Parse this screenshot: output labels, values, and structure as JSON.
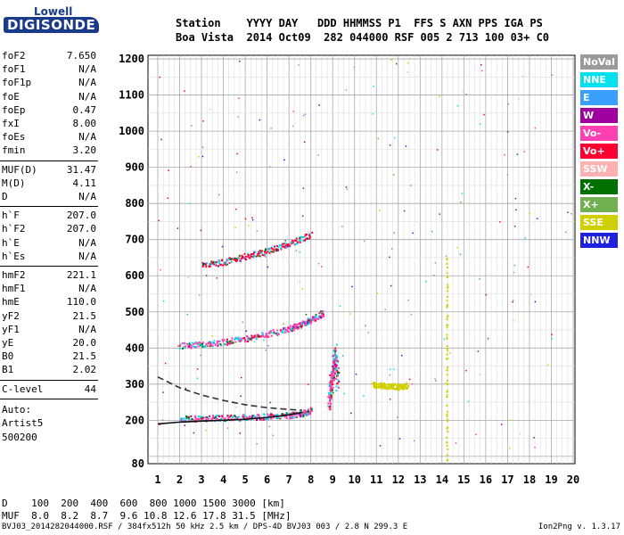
{
  "logo": {
    "top": "Lowell",
    "main": "DIGISONDE"
  },
  "header": {
    "row1": "Station    YYYY DAY   DDD HHMMSS P1  FFS S AXN PPS IGA PS",
    "row2": "Boa Vista  2014 Oct09  282 044000 RSF 005 2 713 100 03+ C0"
  },
  "params_group1": [
    {
      "name": "foF2",
      "value": "7.650"
    },
    {
      "name": "foF1",
      "value": "N/A"
    },
    {
      "name": "foF1p",
      "value": "N/A"
    },
    {
      "name": "foE",
      "value": "N/A"
    },
    {
      "name": "foEp",
      "value": "0.47"
    },
    {
      "name": "fxI",
      "value": "8.00"
    },
    {
      "name": "foEs",
      "value": "N/A"
    },
    {
      "name": "fmin",
      "value": "3.20"
    }
  ],
  "params_group2": [
    {
      "name": "MUF(D)",
      "value": "31.47"
    },
    {
      "name": "M(D)",
      "value": "4.11"
    },
    {
      "name": "D",
      "value": "N/A"
    }
  ],
  "params_group3": [
    {
      "name": "h`F",
      "value": "207.0"
    },
    {
      "name": "h`F2",
      "value": "207.0"
    },
    {
      "name": "h`E",
      "value": "N/A"
    },
    {
      "name": "h`Es",
      "value": "N/A"
    }
  ],
  "params_group4": [
    {
      "name": "hmF2",
      "value": "221.1"
    },
    {
      "name": "hmF1",
      "value": "N/A"
    },
    {
      "name": "hmE",
      "value": "110.0"
    },
    {
      "name": "yF2",
      "value": "21.5"
    },
    {
      "name": "yF1",
      "value": "N/A"
    },
    {
      "name": "yE",
      "value": "20.0"
    },
    {
      "name": "B0",
      "value": "21.5"
    },
    {
      "name": "B1",
      "value": "2.02"
    }
  ],
  "clevel": {
    "name": "C-level",
    "value": "44"
  },
  "autoscale": {
    "line1": "Auto:",
    "line2": "Artist5",
    "line3": "500200"
  },
  "legend": [
    {
      "label": "NoVal",
      "color": "#9a9a9a"
    },
    {
      "label": "NNE",
      "color": "#00e0f0"
    },
    {
      "label": "E",
      "color": "#3aa0ff"
    },
    {
      "label": "W",
      "color": "#a000a0"
    },
    {
      "label": "Vo-",
      "color": "#ff40b0"
    },
    {
      "label": "Vo+",
      "color": "#ff0030"
    },
    {
      "label": "SSW",
      "color": "#ffb0b0"
    },
    {
      "label": "X-",
      "color": "#007000"
    },
    {
      "label": "X+",
      "color": "#70b050"
    },
    {
      "label": "SSE",
      "color": "#d0d000"
    },
    {
      "label": "NNW",
      "color": "#2020e0"
    }
  ],
  "distance_table": {
    "d_label": "D",
    "d_values": "100  200  400  600  800 1000 1500 3000 [km]",
    "muf_label": "MUF",
    "muf_values": "8.0  8.2  8.7  9.6 10.8 12.6 17.8 31.5 [MHz]"
  },
  "footer": {
    "left": "BVJ03_2014282044000.RSF / 384fx512h 50 kHz 2.5 km / DPS-4D BVJ03 003 / 2.8 N 299.3 E",
    "right": "Ion2Png v. 1.3.17"
  },
  "chart_data": {
    "type": "scatter",
    "title": "",
    "xlabel": "",
    "ylabel": "",
    "xlim": [
      0.6,
      20.1
    ],
    "ylim": [
      80,
      1210
    ],
    "x_ticks": [
      1,
      2,
      3,
      4,
      5,
      6,
      7,
      8,
      9,
      10,
      11,
      12,
      13,
      14,
      15,
      16,
      17,
      18,
      19,
      20
    ],
    "y_ticks": [
      80,
      100,
      200,
      300,
      400,
      500,
      600,
      700,
      800,
      900,
      1000,
      1100,
      1200
    ],
    "y_tick_labels": [
      "80",
      "",
      "200",
      "300",
      "400",
      "500",
      "600",
      "700",
      "800",
      "900",
      "1000",
      "1100",
      "1200"
    ],
    "grid": true,
    "traces": [
      {
        "name": "F2 O-mode main trace",
        "color": "#ff40b0",
        "x": [
          2.0,
          3.0,
          4.0,
          5.0,
          6.0,
          7.0,
          7.6,
          8.0
        ],
        "y": [
          205,
          207,
          208,
          210,
          212,
          215,
          220,
          230
        ]
      },
      {
        "name": "2nd hop",
        "color": "#ff40b0",
        "x": [
          2.0,
          3.0,
          4.0,
          5.0,
          6.0,
          7.0,
          7.5,
          8.0,
          8.6
        ],
        "y": [
          408,
          412,
          418,
          428,
          440,
          455,
          465,
          480,
          500
        ]
      },
      {
        "name": "3rd hop",
        "color": "#ff0030",
        "x": [
          3.0,
          4.0,
          5.0,
          6.0,
          7.0,
          8.0
        ],
        "y": [
          630,
          640,
          655,
          670,
          690,
          715
        ]
      },
      {
        "name": "spread F",
        "color": "#ff40b0",
        "x": [
          8.8,
          8.9,
          9.0,
          9.1,
          9.2
        ],
        "y": [
          260,
          300,
          350,
          380,
          310
        ]
      },
      {
        "name": "SSE trace",
        "color": "#d0d000",
        "x": [
          10.8,
          11.2,
          11.6,
          12.0,
          12.4
        ],
        "y": [
          300,
          298,
          296,
          294,
          298
        ]
      },
      {
        "name": "interference line",
        "color": "#d0d000",
        "x": [
          14.2,
          14.2
        ],
        "y": [
          90,
          660
        ]
      }
    ],
    "curves": [
      {
        "name": "profile solid",
        "style": "solid",
        "x": [
          1.0,
          2.0,
          3.0,
          4.0,
          5.0,
          6.0,
          7.0,
          7.6
        ],
        "y": [
          190,
          195,
          198,
          200,
          203,
          208,
          215,
          222
        ]
      },
      {
        "name": "profile dashed",
        "style": "dashed",
        "x": [
          1.0,
          2.0,
          3.0,
          4.0,
          5.0,
          6.0,
          7.0,
          7.6
        ],
        "y": [
          320,
          290,
          270,
          255,
          243,
          235,
          230,
          228
        ]
      }
    ]
  }
}
